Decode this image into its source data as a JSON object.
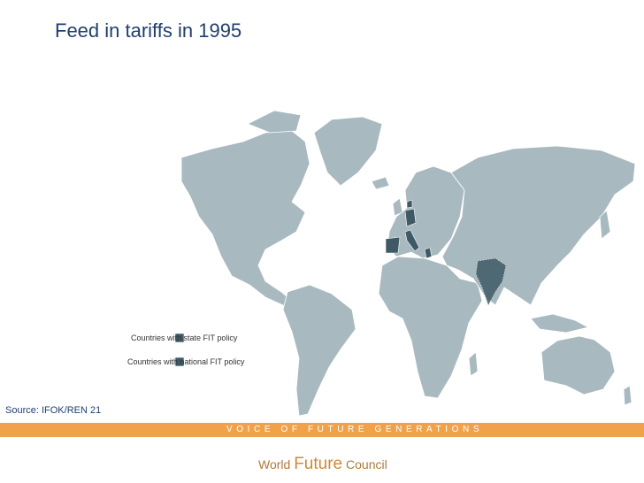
{
  "header": {
    "title": "Feed in tariffs in 1995"
  },
  "map": {
    "legend": [
      {
        "label": "Countries with state FIT policy"
      },
      {
        "label": "Countries with national FIT policy"
      }
    ],
    "source": "Source: IFOK/REN 21"
  },
  "footer": {
    "tagline": "VOICE OF FUTURE GENERATIONS",
    "logo": {
      "word1": "World",
      "word2": "Future",
      "word3": "Council"
    }
  }
}
